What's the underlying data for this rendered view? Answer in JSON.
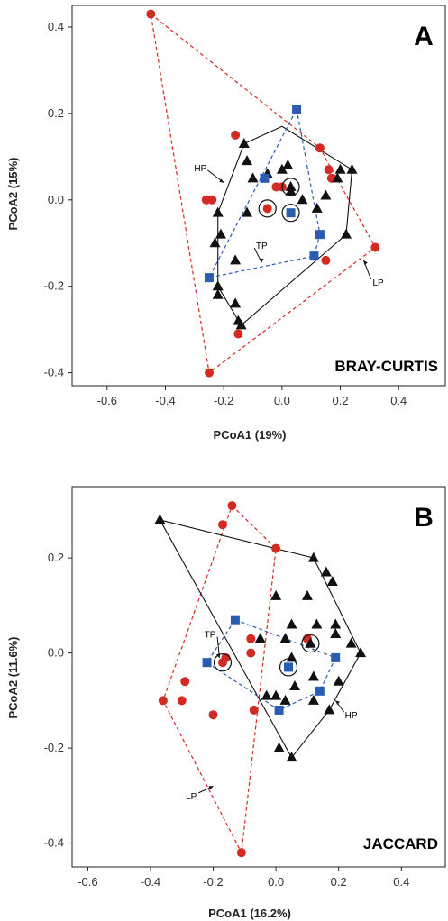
{
  "chart_data": [
    {
      "type": "scatter",
      "panel_label": "A",
      "method_label": "BRAY-CURTIS",
      "xlabel": "PCoA1 (19%)",
      "ylabel": "PCoA2 (15%)",
      "xlim": [
        -0.72,
        0.56
      ],
      "ylim": [
        -0.43,
        0.45
      ],
      "xticks": [
        -0.6,
        -0.4,
        -0.2,
        0.0,
        0.2,
        0.4
      ],
      "xtick_labels": [
        "-0.6",
        "-0.4",
        "-0.2",
        "0.0",
        "0.2",
        "0.4"
      ],
      "yticks": [
        -0.4,
        -0.2,
        0.0,
        0.2,
        0.4
      ],
      "ytick_labels": [
        "-0.4",
        "-0.2",
        "0.0",
        "0.2",
        "0.4"
      ],
      "annotations": [
        {
          "text": "HP",
          "x": -0.28,
          "y": 0.075,
          "tx": -0.2,
          "ty": 0.04
        },
        {
          "text": "TP",
          "x": -0.07,
          "y": -0.105,
          "tx": -0.07,
          "ty": -0.145
        },
        {
          "text": "LP",
          "x": 0.33,
          "y": -0.19,
          "tx": 0.28,
          "ty": -0.14
        }
      ],
      "series": [
        {
          "name": "LP",
          "marker": "circle",
          "color": "#d42a24",
          "hull_style": "dashed",
          "points": [
            [
              -0.45,
              0.43
            ],
            [
              -0.26,
              0.0
            ],
            [
              -0.24,
              0.0
            ],
            [
              -0.25,
              -0.4
            ],
            [
              -0.16,
              0.15
            ],
            [
              -0.05,
              -0.02
            ],
            [
              -0.02,
              0.03
            ],
            [
              0.0,
              0.03
            ],
            [
              0.13,
              0.12
            ],
            [
              0.16,
              0.07
            ],
            [
              0.17,
              0.05
            ],
            [
              0.15,
              -0.14
            ],
            [
              0.32,
              -0.11
            ],
            [
              -0.15,
              -0.31
            ]
          ],
          "circled": [
            [
              -0.05,
              -0.02
            ]
          ],
          "hull": [
            [
              -0.45,
              0.43
            ],
            [
              0.13,
              0.12
            ],
            [
              0.32,
              -0.11
            ],
            [
              -0.25,
              -0.4
            ]
          ]
        },
        {
          "name": "HP",
          "marker": "triangle",
          "color": "#111111",
          "hull_style": "solid",
          "points": [
            [
              -0.13,
              0.13
            ],
            [
              -0.12,
              0.09
            ],
            [
              -0.1,
              0.05
            ],
            [
              -0.05,
              0.06
            ],
            [
              0.0,
              0.07
            ],
            [
              0.02,
              0.08
            ],
            [
              0.2,
              0.07
            ],
            [
              0.24,
              0.07
            ],
            [
              0.19,
              0.05
            ],
            [
              0.15,
              0.01
            ],
            [
              0.03,
              0.03
            ],
            [
              0.07,
              0.0
            ],
            [
              0.12,
              -0.02
            ],
            [
              -0.22,
              -0.03
            ],
            [
              -0.21,
              -0.08
            ],
            [
              -0.16,
              -0.14
            ],
            [
              -0.23,
              -0.1
            ],
            [
              -0.22,
              -0.2
            ],
            [
              -0.22,
              -0.22
            ],
            [
              -0.16,
              -0.24
            ],
            [
              -0.15,
              -0.28
            ],
            [
              -0.14,
              -0.29
            ],
            [
              0.03,
              0.02
            ],
            [
              0.22,
              -0.08
            ],
            [
              -0.12,
              -0.03
            ]
          ],
          "circled": [
            [
              0.03,
              0.03
            ]
          ],
          "hull": [
            [
              -0.13,
              0.13
            ],
            [
              0.0,
              0.17
            ],
            [
              0.24,
              0.07
            ],
            [
              0.22,
              -0.08
            ],
            [
              -0.14,
              -0.29
            ],
            [
              -0.22,
              -0.2
            ],
            [
              -0.22,
              -0.03
            ]
          ]
        },
        {
          "name": "TP",
          "marker": "square",
          "color": "#2a5db0",
          "hull_style": "dashed",
          "points": [
            [
              0.05,
              0.21
            ],
            [
              -0.25,
              -0.18
            ],
            [
              0.13,
              -0.08
            ],
            [
              0.03,
              -0.03
            ],
            [
              0.11,
              -0.13
            ],
            [
              -0.06,
              0.05
            ]
          ],
          "circled": [
            [
              0.03,
              -0.03
            ]
          ],
          "hull": [
            [
              0.05,
              0.21
            ],
            [
              0.13,
              -0.08
            ],
            [
              0.11,
              -0.13
            ],
            [
              -0.25,
              -0.18
            ]
          ]
        }
      ]
    },
    {
      "type": "scatter",
      "panel_label": "B",
      "method_label": "JACCARD",
      "xlabel": "PCoA1 (16.2%)",
      "ylabel": "PCoA2 (11.6%)",
      "xlim": [
        -0.65,
        0.54
      ],
      "ylim": [
        -0.45,
        0.35
      ],
      "xticks": [
        -0.6,
        -0.4,
        -0.2,
        0.0,
        0.2,
        0.4
      ],
      "xtick_labels": [
        "-0.6",
        "-0.4",
        "-0.2",
        "0.0",
        "0.2",
        "0.4"
      ],
      "yticks": [
        -0.4,
        -0.2,
        0.0,
        0.2
      ],
      "ytick_labels": [
        "-0.4",
        "-0.2",
        "0.0",
        "0.2"
      ],
      "annotations": [
        {
          "text": "TP",
          "x": -0.21,
          "y": 0.04,
          "tx": -0.18,
          "ty": -0.01
        },
        {
          "text": "HP",
          "x": 0.24,
          "y": -0.13,
          "tx": 0.19,
          "ty": -0.1
        },
        {
          "text": "LP",
          "x": -0.27,
          "y": -0.3,
          "tx": -0.2,
          "ty": -0.28
        }
      ],
      "series": [
        {
          "name": "LP",
          "marker": "circle",
          "color": "#d42a24",
          "hull_style": "dashed",
          "points": [
            [
              -0.14,
              0.31
            ],
            [
              -0.17,
              0.27
            ],
            [
              0.0,
              0.22
            ],
            [
              -0.08,
              0.03
            ],
            [
              -0.17,
              -0.02
            ],
            [
              -0.36,
              -0.1
            ],
            [
              -0.3,
              -0.1
            ],
            [
              -0.29,
              -0.06
            ],
            [
              -0.2,
              -0.13
            ],
            [
              -0.07,
              -0.12
            ],
            [
              -0.11,
              -0.42
            ],
            [
              -0.16,
              -0.01
            ],
            [
              0.1,
              0.03
            ],
            [
              -0.08,
              0.0
            ]
          ],
          "circled": [
            [
              -0.17,
              -0.02
            ]
          ],
          "hull": [
            [
              -0.14,
              0.31
            ],
            [
              0.0,
              0.22
            ],
            [
              -0.11,
              -0.42
            ],
            [
              -0.36,
              -0.1
            ]
          ]
        },
        {
          "name": "HP",
          "marker": "triangle",
          "color": "#111111",
          "hull_style": "solid",
          "points": [
            [
              -0.37,
              0.28
            ],
            [
              0.12,
              0.2
            ],
            [
              0.16,
              0.17
            ],
            [
              0.18,
              0.15
            ],
            [
              0.0,
              0.12
            ],
            [
              0.1,
              0.12
            ],
            [
              0.05,
              0.06
            ],
            [
              0.13,
              0.06
            ],
            [
              0.19,
              0.06
            ],
            [
              0.19,
              0.04
            ],
            [
              -0.05,
              0.03
            ],
            [
              0.03,
              0.03
            ],
            [
              0.11,
              0.02
            ],
            [
              0.24,
              0.02
            ],
            [
              0.27,
              0.0
            ],
            [
              0.05,
              -0.01
            ],
            [
              0.12,
              -0.05
            ],
            [
              0.2,
              -0.06
            ],
            [
              -0.03,
              -0.09
            ],
            [
              0.0,
              -0.09
            ],
            [
              0.12,
              -0.1
            ],
            [
              0.03,
              -0.1
            ],
            [
              0.17,
              -0.12
            ],
            [
              0.01,
              -0.2
            ],
            [
              0.05,
              -0.22
            ],
            [
              0.11,
              0.02
            ],
            [
              0.06,
              -0.07
            ]
          ],
          "circled": [
            [
              0.11,
              0.02
            ]
          ],
          "hull": [
            [
              -0.37,
              0.28
            ],
            [
              0.12,
              0.2
            ],
            [
              0.27,
              0.0
            ],
            [
              0.17,
              -0.12
            ],
            [
              0.05,
              -0.22
            ]
          ]
        },
        {
          "name": "TP",
          "marker": "square",
          "color": "#2a5db0",
          "hull_style": "dashed",
          "points": [
            [
              -0.22,
              -0.02
            ],
            [
              -0.13,
              0.07
            ],
            [
              0.04,
              -0.03
            ],
            [
              0.19,
              -0.01
            ],
            [
              0.14,
              -0.08
            ],
            [
              0.01,
              -0.12
            ]
          ],
          "circled": [
            [
              0.04,
              -0.03
            ]
          ],
          "hull": [
            [
              -0.13,
              0.07
            ],
            [
              0.19,
              -0.01
            ],
            [
              0.14,
              -0.08
            ],
            [
              0.01,
              -0.12
            ],
            [
              -0.22,
              -0.02
            ]
          ]
        }
      ]
    }
  ]
}
